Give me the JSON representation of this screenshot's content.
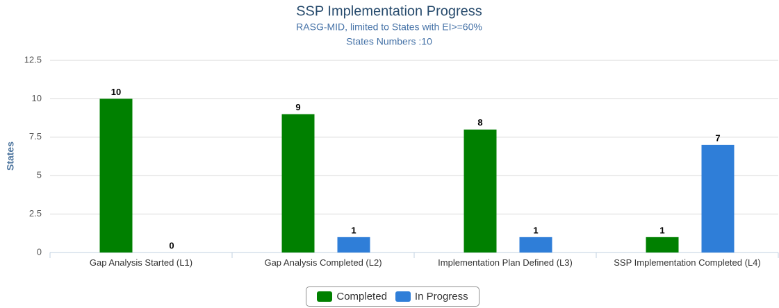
{
  "chart_data": {
    "type": "bar",
    "title": "SSP Implementation Progress",
    "subtitle": [
      "RASG-MID, limited to States with EI>=60%",
      "States Numbers :10"
    ],
    "ylabel": "States",
    "categories": [
      "Gap Analysis Started (L1)",
      "Gap Analysis Completed (L2)",
      "Implementation Plan Defined (L3)",
      "SSP Implementation Completed (L4)"
    ],
    "series": [
      {
        "name": "Completed",
        "color": "#008000",
        "values": [
          10,
          9,
          8,
          1
        ]
      },
      {
        "name": "In Progress",
        "color": "#2f7ed8",
        "values": [
          0,
          1,
          1,
          7
        ]
      }
    ],
    "ylim": [
      0,
      12.5
    ],
    "yticks": [
      0,
      2.5,
      5,
      7.5,
      10,
      12.5
    ],
    "grid": true,
    "legend": "bottom"
  }
}
